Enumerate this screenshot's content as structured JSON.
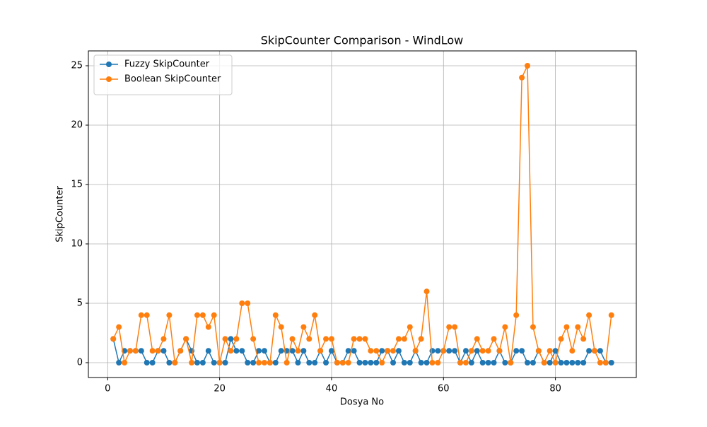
{
  "chart_data": {
    "type": "line",
    "title": "SkipCounter Comparison - WindLow",
    "x_label": "Dosya No",
    "y_label": "SkipCounter",
    "x": [
      1,
      2,
      3,
      4,
      5,
      6,
      7,
      8,
      9,
      10,
      11,
      12,
      13,
      14,
      15,
      16,
      17,
      18,
      19,
      20,
      21,
      22,
      23,
      24,
      25,
      26,
      27,
      28,
      29,
      30,
      31,
      32,
      33,
      34,
      35,
      36,
      37,
      38,
      39,
      40,
      41,
      42,
      43,
      44,
      45,
      46,
      47,
      48,
      49,
      50,
      51,
      52,
      53,
      54,
      55,
      56,
      57,
      58,
      59,
      60,
      61,
      62,
      63,
      64,
      65,
      66,
      67,
      68,
      69,
      70,
      71,
      72,
      73,
      74,
      75,
      76,
      77,
      78,
      79,
      80,
      81,
      82,
      83,
      84,
      85,
      86,
      87,
      88,
      89,
      90
    ],
    "series": [
      {
        "name": "Fuzzy SkipCounter",
        "color": "#1f77b4",
        "values": [
          2,
          0,
          1,
          1,
          1,
          1,
          0,
          0,
          1,
          1,
          0,
          0,
          1,
          2,
          1,
          0,
          0,
          1,
          0,
          0,
          0,
          2,
          1,
          1,
          0,
          0,
          1,
          1,
          0,
          0,
          1,
          1,
          1,
          0,
          1,
          0,
          0,
          1,
          0,
          1,
          0,
          0,
          1,
          1,
          0,
          0,
          0,
          0,
          1,
          1,
          0,
          1,
          0,
          0,
          1,
          0,
          0,
          1,
          1,
          1,
          1,
          1,
          0,
          1,
          0,
          1,
          0,
          0,
          0,
          1,
          0,
          0,
          1,
          1,
          0,
          0,
          1,
          0,
          0,
          1,
          0,
          0,
          0,
          0,
          0,
          1,
          1,
          1,
          0,
          0
        ]
      },
      {
        "name": "Boolean SkipCounter",
        "color": "#ff7f0e",
        "values": [
          2,
          3,
          0,
          1,
          1,
          4,
          4,
          1,
          1,
          2,
          4,
          0,
          1,
          2,
          0,
          4,
          4,
          3,
          4,
          0,
          2,
          1,
          2,
          5,
          5,
          2,
          0,
          0,
          0,
          4,
          3,
          0,
          2,
          1,
          3,
          2,
          4,
          1,
          2,
          2,
          0,
          0,
          0,
          2,
          2,
          2,
          1,
          1,
          0,
          1,
          1,
          2,
          2,
          3,
          1,
          2,
          6,
          0,
          0,
          1,
          3,
          3,
          0,
          0,
          1,
          2,
          1,
          1,
          2,
          1,
          3,
          0,
          4,
          24,
          25,
          3,
          1,
          0,
          1,
          0,
          2,
          3,
          1,
          3,
          2,
          4,
          1,
          0,
          0,
          4
        ]
      }
    ],
    "xlim": [
      -3.45,
      94.45
    ],
    "ylim": [
      -1.25,
      26.25
    ],
    "xticks": [
      0,
      20,
      40,
      60,
      80
    ],
    "yticks": [
      0,
      5,
      10,
      15,
      20,
      25
    ],
    "grid": true,
    "legend": "upper left"
  }
}
